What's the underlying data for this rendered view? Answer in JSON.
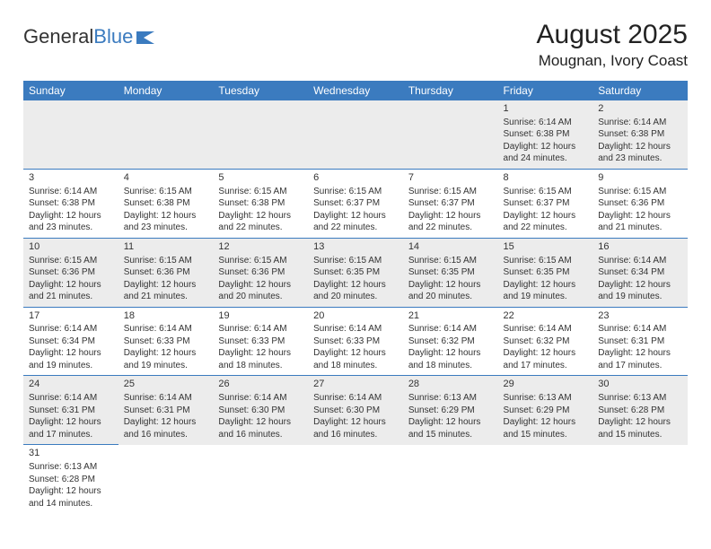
{
  "logo": {
    "text1": "General",
    "text2": "Blue"
  },
  "title": "August 2025",
  "location": "Mougnan, Ivory Coast",
  "colors": {
    "header_bg": "#3b7bbf",
    "shaded": "#ececec",
    "text": "#333333"
  },
  "dayHeaders": [
    "Sunday",
    "Monday",
    "Tuesday",
    "Wednesday",
    "Thursday",
    "Friday",
    "Saturday"
  ],
  "weeks": [
    [
      null,
      null,
      null,
      null,
      null,
      {
        "n": "1",
        "sr": "Sunrise: 6:14 AM",
        "ss": "Sunset: 6:38 PM",
        "d1": "Daylight: 12 hours",
        "d2": "and 24 minutes."
      },
      {
        "n": "2",
        "sr": "Sunrise: 6:14 AM",
        "ss": "Sunset: 6:38 PM",
        "d1": "Daylight: 12 hours",
        "d2": "and 23 minutes."
      }
    ],
    [
      {
        "n": "3",
        "sr": "Sunrise: 6:14 AM",
        "ss": "Sunset: 6:38 PM",
        "d1": "Daylight: 12 hours",
        "d2": "and 23 minutes."
      },
      {
        "n": "4",
        "sr": "Sunrise: 6:15 AM",
        "ss": "Sunset: 6:38 PM",
        "d1": "Daylight: 12 hours",
        "d2": "and 23 minutes."
      },
      {
        "n": "5",
        "sr": "Sunrise: 6:15 AM",
        "ss": "Sunset: 6:38 PM",
        "d1": "Daylight: 12 hours",
        "d2": "and 22 minutes."
      },
      {
        "n": "6",
        "sr": "Sunrise: 6:15 AM",
        "ss": "Sunset: 6:37 PM",
        "d1": "Daylight: 12 hours",
        "d2": "and 22 minutes."
      },
      {
        "n": "7",
        "sr": "Sunrise: 6:15 AM",
        "ss": "Sunset: 6:37 PM",
        "d1": "Daylight: 12 hours",
        "d2": "and 22 minutes."
      },
      {
        "n": "8",
        "sr": "Sunrise: 6:15 AM",
        "ss": "Sunset: 6:37 PM",
        "d1": "Daylight: 12 hours",
        "d2": "and 22 minutes."
      },
      {
        "n": "9",
        "sr": "Sunrise: 6:15 AM",
        "ss": "Sunset: 6:36 PM",
        "d1": "Daylight: 12 hours",
        "d2": "and 21 minutes."
      }
    ],
    [
      {
        "n": "10",
        "sr": "Sunrise: 6:15 AM",
        "ss": "Sunset: 6:36 PM",
        "d1": "Daylight: 12 hours",
        "d2": "and 21 minutes."
      },
      {
        "n": "11",
        "sr": "Sunrise: 6:15 AM",
        "ss": "Sunset: 6:36 PM",
        "d1": "Daylight: 12 hours",
        "d2": "and 21 minutes."
      },
      {
        "n": "12",
        "sr": "Sunrise: 6:15 AM",
        "ss": "Sunset: 6:36 PM",
        "d1": "Daylight: 12 hours",
        "d2": "and 20 minutes."
      },
      {
        "n": "13",
        "sr": "Sunrise: 6:15 AM",
        "ss": "Sunset: 6:35 PM",
        "d1": "Daylight: 12 hours",
        "d2": "and 20 minutes."
      },
      {
        "n": "14",
        "sr": "Sunrise: 6:15 AM",
        "ss": "Sunset: 6:35 PM",
        "d1": "Daylight: 12 hours",
        "d2": "and 20 minutes."
      },
      {
        "n": "15",
        "sr": "Sunrise: 6:15 AM",
        "ss": "Sunset: 6:35 PM",
        "d1": "Daylight: 12 hours",
        "d2": "and 19 minutes."
      },
      {
        "n": "16",
        "sr": "Sunrise: 6:14 AM",
        "ss": "Sunset: 6:34 PM",
        "d1": "Daylight: 12 hours",
        "d2": "and 19 minutes."
      }
    ],
    [
      {
        "n": "17",
        "sr": "Sunrise: 6:14 AM",
        "ss": "Sunset: 6:34 PM",
        "d1": "Daylight: 12 hours",
        "d2": "and 19 minutes."
      },
      {
        "n": "18",
        "sr": "Sunrise: 6:14 AM",
        "ss": "Sunset: 6:33 PM",
        "d1": "Daylight: 12 hours",
        "d2": "and 19 minutes."
      },
      {
        "n": "19",
        "sr": "Sunrise: 6:14 AM",
        "ss": "Sunset: 6:33 PM",
        "d1": "Daylight: 12 hours",
        "d2": "and 18 minutes."
      },
      {
        "n": "20",
        "sr": "Sunrise: 6:14 AM",
        "ss": "Sunset: 6:33 PM",
        "d1": "Daylight: 12 hours",
        "d2": "and 18 minutes."
      },
      {
        "n": "21",
        "sr": "Sunrise: 6:14 AM",
        "ss": "Sunset: 6:32 PM",
        "d1": "Daylight: 12 hours",
        "d2": "and 18 minutes."
      },
      {
        "n": "22",
        "sr": "Sunrise: 6:14 AM",
        "ss": "Sunset: 6:32 PM",
        "d1": "Daylight: 12 hours",
        "d2": "and 17 minutes."
      },
      {
        "n": "23",
        "sr": "Sunrise: 6:14 AM",
        "ss": "Sunset: 6:31 PM",
        "d1": "Daylight: 12 hours",
        "d2": "and 17 minutes."
      }
    ],
    [
      {
        "n": "24",
        "sr": "Sunrise: 6:14 AM",
        "ss": "Sunset: 6:31 PM",
        "d1": "Daylight: 12 hours",
        "d2": "and 17 minutes."
      },
      {
        "n": "25",
        "sr": "Sunrise: 6:14 AM",
        "ss": "Sunset: 6:31 PM",
        "d1": "Daylight: 12 hours",
        "d2": "and 16 minutes."
      },
      {
        "n": "26",
        "sr": "Sunrise: 6:14 AM",
        "ss": "Sunset: 6:30 PM",
        "d1": "Daylight: 12 hours",
        "d2": "and 16 minutes."
      },
      {
        "n": "27",
        "sr": "Sunrise: 6:14 AM",
        "ss": "Sunset: 6:30 PM",
        "d1": "Daylight: 12 hours",
        "d2": "and 16 minutes."
      },
      {
        "n": "28",
        "sr": "Sunrise: 6:13 AM",
        "ss": "Sunset: 6:29 PM",
        "d1": "Daylight: 12 hours",
        "d2": "and 15 minutes."
      },
      {
        "n": "29",
        "sr": "Sunrise: 6:13 AM",
        "ss": "Sunset: 6:29 PM",
        "d1": "Daylight: 12 hours",
        "d2": "and 15 minutes."
      },
      {
        "n": "30",
        "sr": "Sunrise: 6:13 AM",
        "ss": "Sunset: 6:28 PM",
        "d1": "Daylight: 12 hours",
        "d2": "and 15 minutes."
      }
    ],
    [
      {
        "n": "31",
        "sr": "Sunrise: 6:13 AM",
        "ss": "Sunset: 6:28 PM",
        "d1": "Daylight: 12 hours",
        "d2": "and 14 minutes."
      },
      null,
      null,
      null,
      null,
      null,
      null
    ]
  ]
}
